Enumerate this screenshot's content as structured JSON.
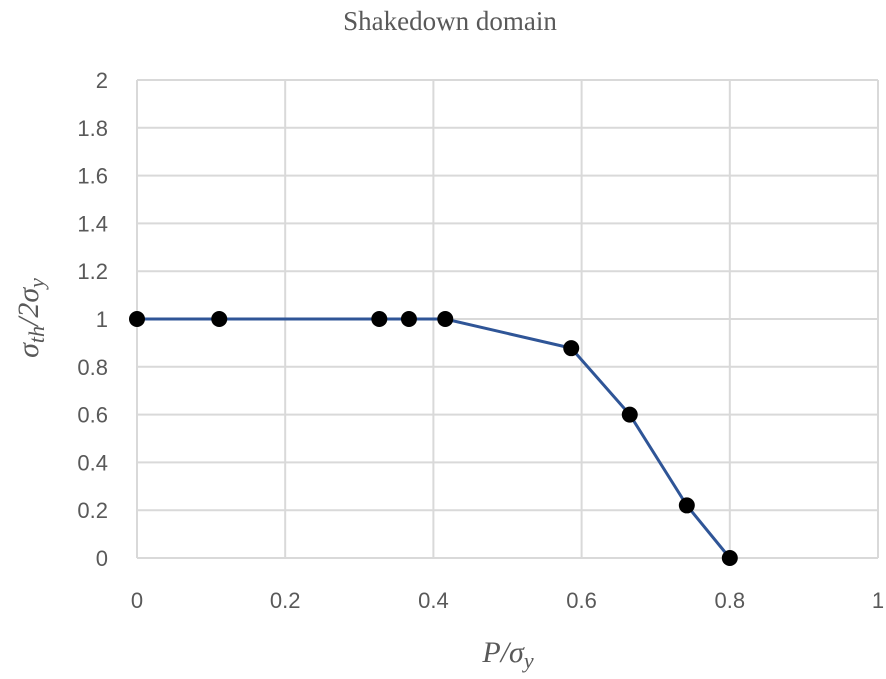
{
  "chart_data": {
    "type": "line",
    "title": "Shakedown domain",
    "xlabel": "P/σy",
    "ylabel": "σth/2σy",
    "xlim": [
      0,
      1
    ],
    "ylim": [
      0,
      2
    ],
    "xticks": [
      "0",
      "0.2",
      "0.4",
      "0.6",
      "0.8",
      "1"
    ],
    "yticks": [
      "0",
      "0.2",
      "0.4",
      "0.6",
      "0.8",
      "1",
      "1.2",
      "1.4",
      "1.6",
      "1.8",
      "2"
    ],
    "grid": true,
    "series": [
      {
        "x": [
          0,
          0.111,
          0.327,
          0.367,
          0.416,
          0.586,
          0.665,
          0.742,
          0.8
        ],
        "y": [
          1,
          1,
          1,
          1,
          1,
          0.878,
          0.6,
          0.22,
          0
        ]
      }
    ],
    "colors": {
      "line": "#2F5597",
      "marker": "#000000",
      "grid": "#D9D9D9"
    }
  }
}
